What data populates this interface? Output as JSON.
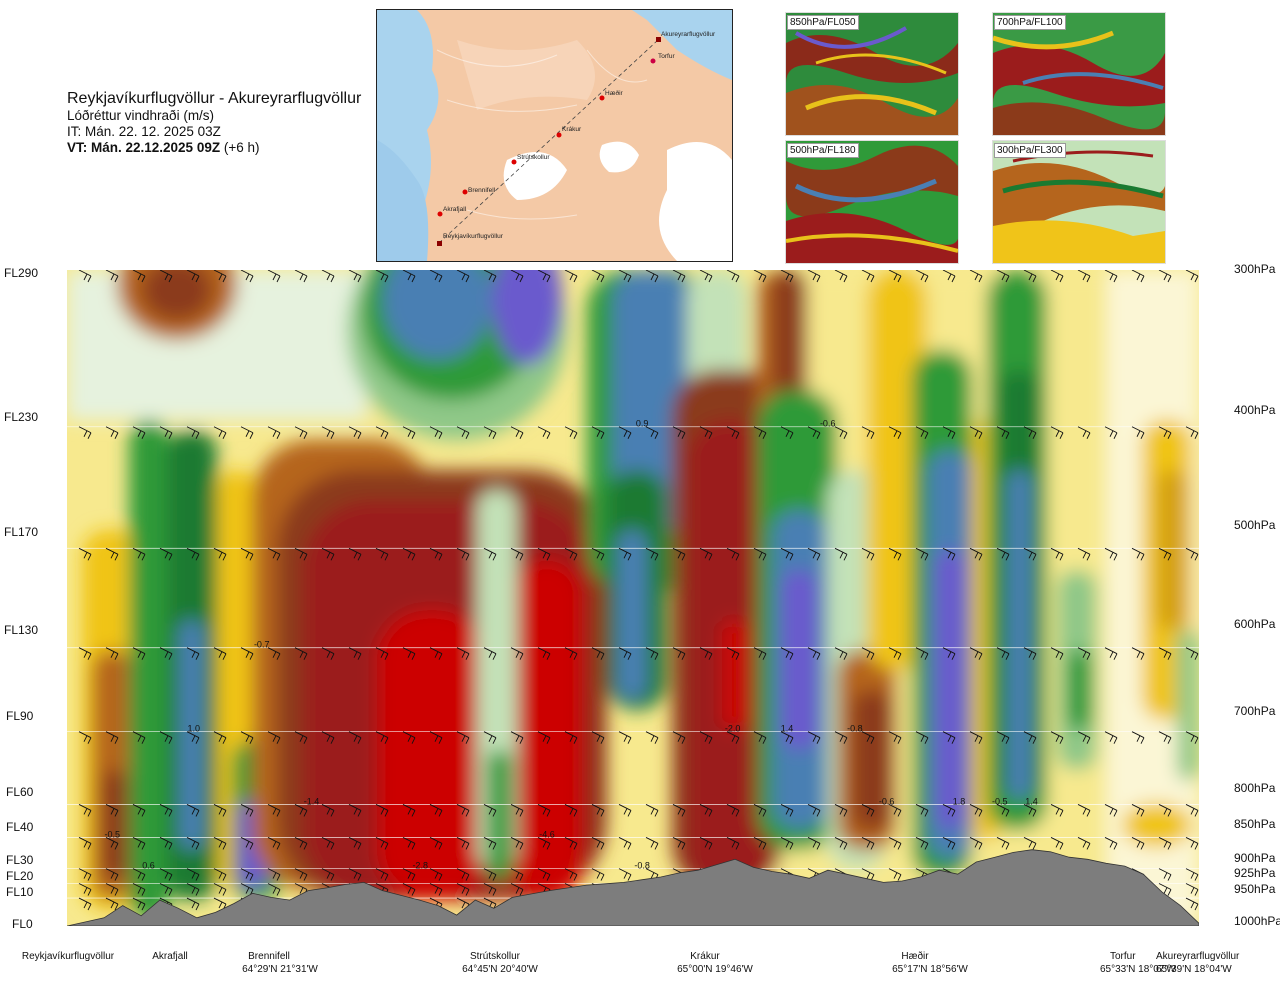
{
  "header": {
    "route": "Reykjavíkurflugvöllur - Akureyrarflugvöllur",
    "variable": "Lóðréttur vindhraði (m/s)",
    "initial_time": "IT: Mán. 22. 12. 2025 03Z",
    "valid_time_bold": "VT: Mán. 22.12.2025 09Z",
    "valid_time_offset": " (+6 h)"
  },
  "map": {
    "waypoints": [
      "Akureyrarflugvöllur",
      "Torfur",
      "Hæðir",
      "Krákur",
      "Strútskollur",
      "Brennifell",
      "Akrafjall",
      "Reykjavíkurflugvöllur"
    ]
  },
  "thumbnails": [
    {
      "label": "850hPa/FL050"
    },
    {
      "label": "700hPa/FL100"
    },
    {
      "label": "500hPa/FL180"
    },
    {
      "label": "300hPa/FL300"
    }
  ],
  "chart_data": {
    "type": "heatmap",
    "title": "Lóðréttur vindhraði (m/s)",
    "left_axis": [
      "FL290",
      "FL230",
      "FL170",
      "FL130",
      "FL90",
      "FL60",
      "FL40",
      "FL30",
      "FL20",
      "FL10",
      "FL0"
    ],
    "right_axis": [
      "300hPa",
      "400hPa",
      "500hPa",
      "600hPa",
      "700hPa",
      "800hPa",
      "850hPa",
      "900hPa",
      "925hPa",
      "950hPa",
      "1000hPa"
    ],
    "pressure_hpa": [
      300,
      400,
      500,
      600,
      700,
      800,
      850,
      900,
      925,
      950,
      1000
    ],
    "x_range_km": [
      0,
      250
    ],
    "locations": [
      {
        "name": "Reykjavíkurflugvöllur",
        "coord": "",
        "km": 0
      },
      {
        "name": "Akrafjall",
        "coord": "",
        "km": 22
      },
      {
        "name": "Brennifell",
        "coord": "64°29'N 21°31'W",
        "km": 46
      },
      {
        "name": "Strútskollur",
        "coord": "64°45'N 20°40'W",
        "km": 93
      },
      {
        "name": "Krákur",
        "coord": "65°00'N 19°46'W",
        "km": 141
      },
      {
        "name": "Hæðir",
        "coord": "65°17'N 18°56'W",
        "km": 185
      },
      {
        "name": "Torfur",
        "coord": "65°33'N 18°07'W",
        "km": 237
      },
      {
        "name": "Akureyrarflugvöllur",
        "coord": "65°39'N 18°04'W",
        "km": 250
      }
    ],
    "extrema": [
      {
        "label": "-0.5",
        "km": 10,
        "p": 850
      },
      {
        "label": "0.6",
        "km": 18,
        "p": 900
      },
      {
        "label": "1.0",
        "km": 28,
        "p": 700
      },
      {
        "label": "-0.7",
        "km": 43,
        "p": 600
      },
      {
        "label": "-1.4",
        "km": 54,
        "p": 800
      },
      {
        "label": "-2.8",
        "km": 78,
        "p": 900
      },
      {
        "label": "-4.6",
        "km": 106,
        "p": 850
      },
      {
        "label": "-0.8",
        "km": 127,
        "p": 900
      },
      {
        "label": "0.9",
        "km": 127,
        "p": 400
      },
      {
        "label": "-2.0",
        "km": 147,
        "p": 700
      },
      {
        "label": "1.4",
        "km": 159,
        "p": 700
      },
      {
        "label": "-0.6",
        "km": 168,
        "p": 400
      },
      {
        "label": "-0.8",
        "km": 174,
        "p": 700
      },
      {
        "label": "-0.6",
        "km": 181,
        "p": 800
      },
      {
        "label": "1.8",
        "km": 197,
        "p": 800
      },
      {
        "label": "-0.5",
        "km": 206,
        "p": 800
      },
      {
        "label": "1.4",
        "km": 213,
        "p": 800
      }
    ],
    "terrain_m": [
      0,
      60,
      120,
      300,
      150,
      380,
      260,
      120,
      200,
      330,
      480,
      420,
      380,
      520,
      560,
      610,
      640,
      520,
      450,
      380,
      300,
      160,
      380,
      260,
      420,
      470,
      520,
      560,
      600,
      620,
      640,
      680,
      720,
      780,
      820,
      900,
      980,
      860,
      800,
      760,
      700,
      820,
      760,
      700,
      640,
      660,
      720,
      820,
      760,
      940,
      1010,
      1080,
      1120,
      1090,
      1010,
      980,
      920,
      880,
      760,
      500,
      300,
      40
    ],
    "colorscale": [
      {
        "value": -3.0,
        "color": "#cc0000"
      },
      {
        "value": -1.5,
        "color": "#9b1c1c"
      },
      {
        "value": -0.9,
        "color": "#8b3a1a"
      },
      {
        "value": -0.6,
        "color": "#b5651d"
      },
      {
        "value": -0.4,
        "color": "#d4a017"
      },
      {
        "value": -0.25,
        "color": "#f0c419"
      },
      {
        "value": -0.1,
        "color": "#f7e98e"
      },
      {
        "value": 0.0,
        "color": "#fbf6d5"
      },
      {
        "value": 0.1,
        "color": "#e6f2de"
      },
      {
        "value": 0.25,
        "color": "#c3e2b8"
      },
      {
        "value": 0.4,
        "color": "#8fc888"
      },
      {
        "value": 0.6,
        "color": "#2f9a39"
      },
      {
        "value": 0.9,
        "color": "#1a7a30"
      },
      {
        "value": 1.2,
        "color": "#4a7fb3"
      },
      {
        "value": 1.6,
        "color": "#6a5acd"
      }
    ]
  }
}
